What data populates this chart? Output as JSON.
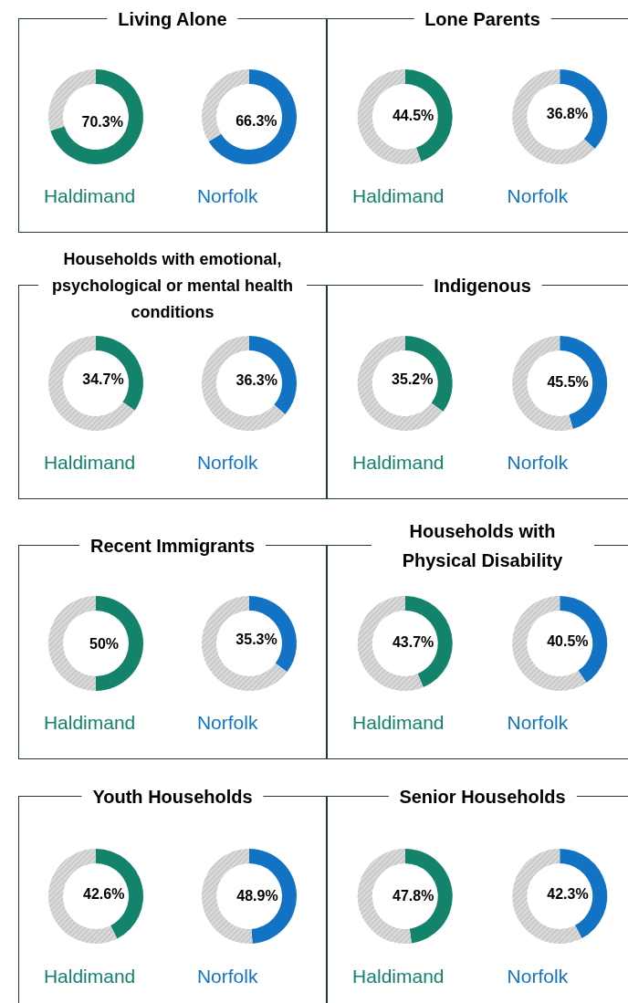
{
  "chart_data": [
    {
      "type": "donut",
      "title": "Living Alone",
      "categories": [
        null,
        null
      ],
      "series": [
        {
          "name": "Haldimand",
          "color": "#13836b",
          "colors": [
            "#13836b",
            "#d9d9d9"
          ],
          "values": [
            70.3,
            29.7
          ],
          "value_labels": [
            "70.3%",
            null
          ]
        },
        {
          "name": "Norfolk",
          "color": "#1273c4",
          "colors": [
            "#1273c4",
            "#d9d9d9"
          ],
          "values": [
            66.3,
            33.7
          ],
          "value_labels": [
            "66.3%",
            null
          ]
        }
      ]
    },
    {
      "type": "donut",
      "title": "Lone Parents",
      "categories": [
        null,
        null
      ],
      "series": [
        {
          "name": "Haldimand",
          "color": "#13836b",
          "colors": [
            "#13836b",
            "#d9d9d9"
          ],
          "values": [
            44.5,
            55.5
          ],
          "value_labels": [
            "44.5%",
            null
          ]
        },
        {
          "name": "Norfolk",
          "color": "#1273c4",
          "colors": [
            "#1273c4",
            "#d9d9d9"
          ],
          "values": [
            36.8,
            63.2
          ],
          "value_labels": [
            "36.8%",
            null
          ]
        }
      ]
    },
    {
      "type": "donut",
      "title": "Households with emotional, psychological or mental health conditions",
      "categories": [
        null,
        null
      ],
      "series": [
        {
          "name": "Haldimand",
          "color": "#13836b",
          "colors": [
            "#13836b",
            "#d9d9d9"
          ],
          "values": [
            34.7,
            65.3
          ],
          "value_labels": [
            "34.7%",
            null
          ]
        },
        {
          "name": "Norfolk",
          "color": "#1273c4",
          "colors": [
            "#1273c4",
            "#d9d9d9"
          ],
          "values": [
            36.3,
            63.7
          ],
          "value_labels": [
            "36.3%",
            null
          ]
        }
      ]
    },
    {
      "type": "donut",
      "title": "Indigenous",
      "categories": [
        null,
        null
      ],
      "series": [
        {
          "name": "Haldimand",
          "color": "#13836b",
          "colors": [
            "#13836b",
            "#d9d9d9"
          ],
          "values": [
            35.2,
            64.8
          ],
          "value_labels": [
            "35.2%",
            null
          ]
        },
        {
          "name": "Norfolk",
          "color": "#1273c4",
          "colors": [
            "#1273c4",
            "#d9d9d9"
          ],
          "values": [
            45.5,
            54.5
          ],
          "value_labels": [
            "45.5%",
            null
          ]
        }
      ]
    },
    {
      "type": "donut",
      "title": "Recent Immigrants",
      "categories": [
        null,
        null
      ],
      "series": [
        {
          "name": "Haldimand",
          "color": "#13836b",
          "colors": [
            "#13836b",
            "#d9d9d9"
          ],
          "values": [
            50,
            50
          ],
          "value_labels": [
            "50%",
            null
          ]
        },
        {
          "name": "Norfolk",
          "color": "#1273c4",
          "colors": [
            "#1273c4",
            "#d9d9d9"
          ],
          "values": [
            35.3,
            64.7
          ],
          "value_labels": [
            "35.3%",
            null
          ]
        }
      ]
    },
    {
      "type": "donut",
      "title": "Households with Physical Disability",
      "categories": [
        null,
        null
      ],
      "series": [
        {
          "name": "Haldimand",
          "color": "#13836b",
          "colors": [
            "#13836b",
            "#d9d9d9"
          ],
          "values": [
            43.7,
            56.3
          ],
          "value_labels": [
            "43.7%",
            null
          ]
        },
        {
          "name": "Norfolk",
          "color": "#1273c4",
          "colors": [
            "#1273c4",
            "#d9d9d9"
          ],
          "values": [
            40.5,
            59.5
          ],
          "value_labels": [
            "40.5%",
            null
          ]
        }
      ]
    },
    {
      "type": "donut",
      "title": "Youth Households",
      "categories": [
        null,
        null
      ],
      "series": [
        {
          "name": "Haldimand",
          "color": "#13836b",
          "colors": [
            "#13836b",
            "#d9d9d9"
          ],
          "values": [
            42.6,
            57.4
          ],
          "value_labels": [
            "42.6%",
            null
          ]
        },
        {
          "name": "Norfolk",
          "color": "#1273c4",
          "colors": [
            "#1273c4",
            "#d9d9d9"
          ],
          "values": [
            48.9,
            51.1
          ],
          "value_labels": [
            "48.9%",
            null
          ]
        }
      ]
    },
    {
      "type": "donut",
      "title": "Senior Households",
      "categories": [
        null,
        null
      ],
      "series": [
        {
          "name": "Haldimand",
          "color": "#13836b",
          "colors": [
            "#13836b",
            "#d9d9d9"
          ],
          "values": [
            47.8,
            52.2
          ],
          "value_labels": [
            "47.8%",
            null
          ]
        },
        {
          "name": "Norfolk",
          "color": "#1273c4",
          "colors": [
            "#1273c4",
            "#d9d9d9"
          ],
          "values": [
            42.3,
            57.7
          ],
          "value_labels": [
            "42.3%",
            null
          ]
        }
      ]
    }
  ]
}
